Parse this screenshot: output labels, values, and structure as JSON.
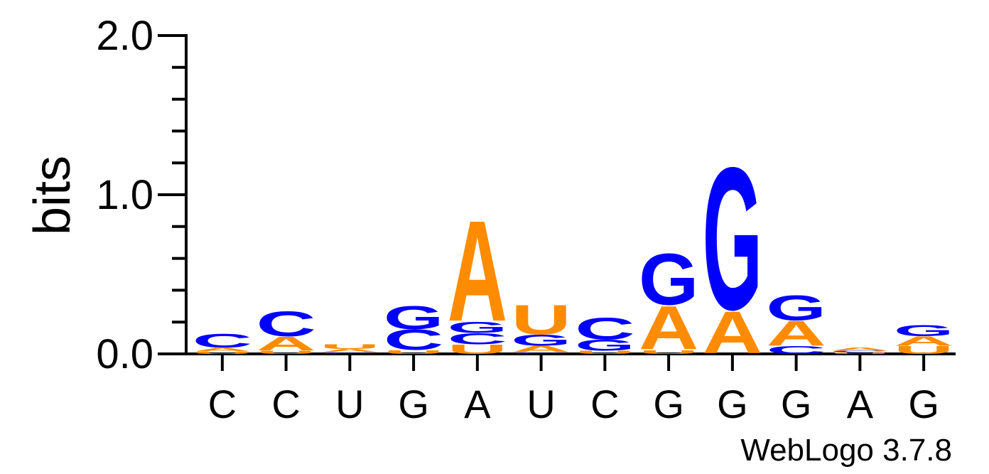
{
  "chart_data": {
    "type": "sequence-logo",
    "ylabel": "bits",
    "ylim": [
      0,
      2.0
    ],
    "yticks_labeled": [
      "0.0",
      "1.0",
      "2.0"
    ],
    "ytick_values": [
      0.0,
      1.0,
      2.0
    ],
    "x_tick_labels": [
      "C",
      "C",
      "U",
      "G",
      "A",
      "U",
      "C",
      "G",
      "G",
      "G",
      "A",
      "G"
    ],
    "colors": {
      "A": "#ff8c00",
      "U": "#ff8c00",
      "C": "#0000ff",
      "G": "#0000ff"
    },
    "columns": [
      {
        "stack": [
          {
            "letter": "U",
            "bits": 0.015
          },
          {
            "letter": "A",
            "bits": 0.025
          },
          {
            "letter": "C",
            "bits": 0.09
          }
        ]
      },
      {
        "stack": [
          {
            "letter": "U",
            "bits": 0.02
          },
          {
            "letter": "A",
            "bits": 0.09
          },
          {
            "letter": "C",
            "bits": 0.16
          }
        ]
      },
      {
        "stack": [
          {
            "letter": "C",
            "bits": 0.01
          },
          {
            "letter": "A",
            "bits": 0.02
          },
          {
            "letter": "U",
            "bits": 0.03
          }
        ]
      },
      {
        "stack": [
          {
            "letter": "U",
            "bits": 0.025
          },
          {
            "letter": "C",
            "bits": 0.13
          },
          {
            "letter": "G",
            "bits": 0.15
          }
        ]
      },
      {
        "stack": [
          {
            "letter": "U",
            "bits": 0.06
          },
          {
            "letter": "C",
            "bits": 0.07
          },
          {
            "letter": "G",
            "bits": 0.07
          },
          {
            "letter": "A",
            "bits": 0.65
          }
        ]
      },
      {
        "stack": [
          {
            "letter": "C",
            "bits": 0.01
          },
          {
            "letter": "A",
            "bits": 0.04
          },
          {
            "letter": "G",
            "bits": 0.07
          },
          {
            "letter": "U",
            "bits": 0.19
          }
        ]
      },
      {
        "stack": [
          {
            "letter": "U",
            "bits": 0.02
          },
          {
            "letter": "G",
            "bits": 0.07
          },
          {
            "letter": "C",
            "bits": 0.14
          }
        ]
      },
      {
        "stack": [
          {
            "letter": "U",
            "bits": 0.025
          },
          {
            "letter": "A",
            "bits": 0.28
          },
          {
            "letter": "G",
            "bits": 0.33
          }
        ]
      },
      {
        "stack": [
          {
            "letter": "A",
            "bits": 0.27
          },
          {
            "letter": "G",
            "bits": 0.92
          }
        ]
      },
      {
        "stack": [
          {
            "letter": "C",
            "bits": 0.05
          },
          {
            "letter": "A",
            "bits": 0.16
          },
          {
            "letter": "G",
            "bits": 0.16
          }
        ]
      },
      {
        "stack": [
          {
            "letter": "U",
            "bits": 0.01
          },
          {
            "letter": "C",
            "bits": 0.01
          },
          {
            "letter": "A",
            "bits": 0.02
          }
        ]
      },
      {
        "stack": [
          {
            "letter": "U",
            "bits": 0.05
          },
          {
            "letter": "A",
            "bits": 0.06
          },
          {
            "letter": "G",
            "bits": 0.07
          }
        ]
      }
    ]
  },
  "footer": {
    "credit": "WebLogo 3.7.8"
  }
}
